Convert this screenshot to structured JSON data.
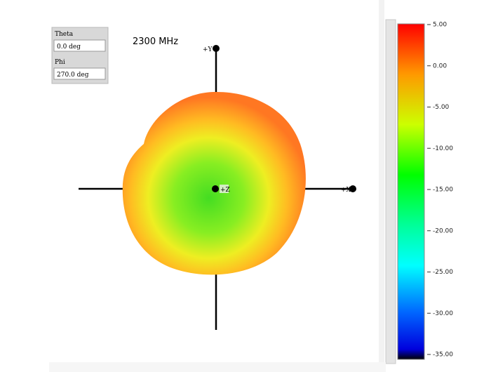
{
  "controls": {
    "theta": {
      "label": "Theta",
      "value": "0.0 deg"
    },
    "phi": {
      "label": "Phi",
      "value": "270.0 deg"
    }
  },
  "frequency": "2300 MHz",
  "axes": {
    "y": "+Y",
    "x": "+X",
    "z": "+Z"
  },
  "colorbar": {
    "range": [
      -35,
      5
    ],
    "ticks": [
      {
        "value": 5,
        "label": "5.00"
      },
      {
        "value": 0,
        "label": "0.00"
      },
      {
        "value": -5,
        "label": "-5.00"
      },
      {
        "value": -10,
        "label": "-10.00"
      },
      {
        "value": -15,
        "label": "-15.00"
      },
      {
        "value": -20,
        "label": "-20.00"
      },
      {
        "value": -25,
        "label": "-25.00"
      },
      {
        "value": -30,
        "label": "-30.00"
      },
      {
        "value": -35,
        "label": "-35.00"
      }
    ]
  }
}
